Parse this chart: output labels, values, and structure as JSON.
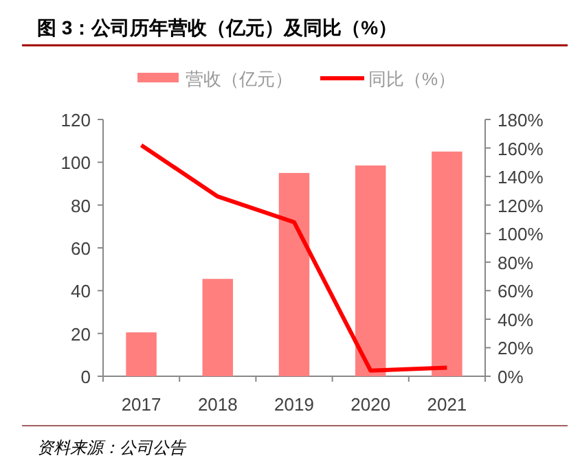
{
  "chart_data": {
    "type": "bar",
    "title": "图 3：公司历年营收（亿元）及同比（%）",
    "categories": [
      "2017",
      "2018",
      "2019",
      "2020",
      "2021"
    ],
    "series": [
      {
        "name": "营收（亿元）",
        "color": "#ff7f7f",
        "values": [
          20.5,
          45.5,
          95,
          98.5,
          105
        ]
      },
      {
        "name": "同比（%）",
        "type": "line",
        "axis": "y2",
        "color": "#ff0000",
        "values": [
          162,
          126,
          108,
          4,
          6
        ]
      }
    ],
    "ylim": [
      0,
      120
    ],
    "yticks": [
      0,
      20,
      40,
      60,
      80,
      100,
      120
    ],
    "y2lim": [
      0,
      180
    ],
    "y2ticks": [
      {
        "value": 0,
        "label": "0%"
      },
      {
        "value": 20,
        "label": "20%"
      },
      {
        "value": 40,
        "label": "40%"
      },
      {
        "value": 60,
        "label": "60%"
      },
      {
        "value": 80,
        "label": "80%"
      },
      {
        "value": 100,
        "label": "100%"
      },
      {
        "value": 120,
        "label": "120%"
      },
      {
        "value": 140,
        "label": "140%"
      },
      {
        "value": 160,
        "label": "160%"
      },
      {
        "value": 180,
        "label": "180%"
      }
    ],
    "legend": "top",
    "annotations": [
      "资料来源：公司公告"
    ]
  }
}
